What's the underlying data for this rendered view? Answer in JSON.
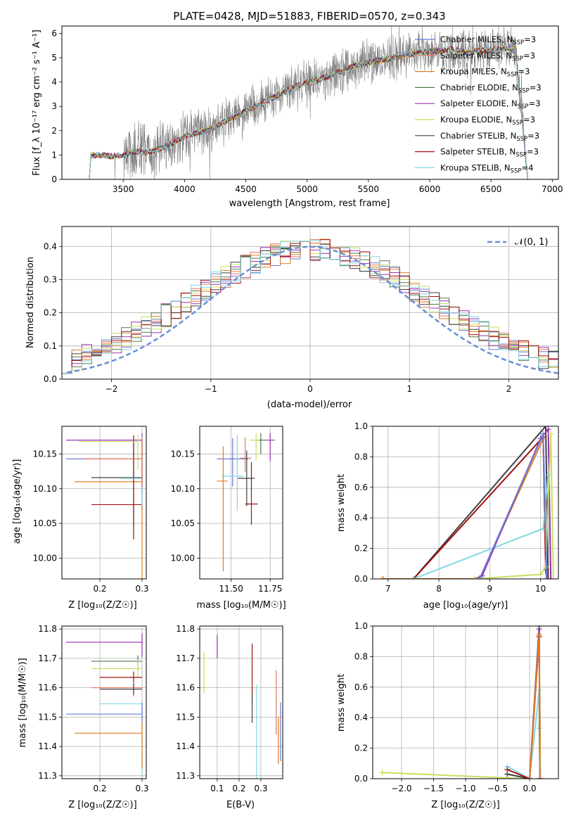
{
  "colors": {
    "data_spectrum": "#808080",
    "gaussian": "#6a8fd8",
    "models": [
      "#6a7ad8",
      "#e07a5f",
      "#e07b20",
      "#4d7a4d",
      "#9b30b0",
      "#c8e060",
      "#404040",
      "#a01010",
      "#80d8e0"
    ]
  },
  "chart_data": [
    {
      "id": "spectrum",
      "type": "line",
      "title": "PLATE=0428, MJD=51883, FIBERID=0570, z=0.343",
      "xlabel": "wavelength [Angstrom, rest frame]",
      "ylabel": "Flux [f_λ 10⁻¹⁷ erg cm⁻² s⁻¹ A⁻¹]",
      "xlim": [
        3000,
        7050
      ],
      "ylim": [
        0,
        6.3
      ],
      "xticks": [
        "3500",
        "4000",
        "4500",
        "5000",
        "5500",
        "6000",
        "6500",
        "7000"
      ],
      "yticks": [
        "0",
        "1",
        "2",
        "3",
        "4",
        "5",
        "6"
      ],
      "grid": false,
      "legend_location": "upper right",
      "legend": [
        {
          "label": "Chabrier MILES, N",
          "sub": "SSP",
          "suffix": "=3"
        },
        {
          "label": "Salpeter MILES, N",
          "sub": "SSP",
          "suffix": "=3"
        },
        {
          "label": "Kroupa MILES, N",
          "sub": "SSP",
          "suffix": "=3"
        },
        {
          "label": "Chabrier ELODIE, N",
          "sub": "SSP",
          "suffix": "=3"
        },
        {
          "label": "Salpeter ELODIE, N",
          "sub": "SSP",
          "suffix": "=3"
        },
        {
          "label": "Kroupa ELODIE, N",
          "sub": "SSP",
          "suffix": "=3"
        },
        {
          "label": "Chabrier STELIB, N",
          "sub": "SSP",
          "suffix": "=3"
        },
        {
          "label": "Salpeter STELIB, N",
          "sub": "SSP",
          "suffix": "=3"
        },
        {
          "label": "Kroupa STELIB, N",
          "sub": "SSP",
          "suffix": "=4"
        }
      ],
      "data_x_range": [
        3240,
        6780
      ],
      "model_continuum": {
        "x": [
          3200,
          3230,
          3300,
          3400,
          3500,
          3600,
          3700,
          3800,
          3900,
          4000,
          4100,
          4200,
          4300,
          4400,
          4500,
          4600,
          4700,
          4800,
          4900,
          5000,
          5100,
          5200,
          5300,
          5400,
          5500,
          5600,
          5700,
          5800,
          5900,
          6000,
          6100,
          6200,
          6300,
          6400,
          6500,
          6600,
          6700,
          6800
        ],
        "y": [
          0,
          1.0,
          1.0,
          0.95,
          1.0,
          1.15,
          1.1,
          1.25,
          1.5,
          1.75,
          1.9,
          2.05,
          2.3,
          2.55,
          2.8,
          3.05,
          3.3,
          3.55,
          3.8,
          4.0,
          4.1,
          4.3,
          4.5,
          4.7,
          4.8,
          4.9,
          5.0,
          5.1,
          5.2,
          5.25,
          5.3,
          5.35,
          5.2,
          5.3,
          5.3,
          5.4,
          5.3,
          0
        ]
      }
    },
    {
      "id": "residuals",
      "type": "step",
      "xlabel": "(data-model)/error",
      "ylabel": "Normed distribution",
      "xlim": [
        -2.5,
        2.5
      ],
      "ylim": [
        0,
        0.46
      ],
      "xticks": [
        "−2",
        "−1",
        "0",
        "1",
        "2"
      ],
      "yticks": [
        "0.0",
        "0.1",
        "0.2",
        "0.3",
        "0.4"
      ],
      "grid": true,
      "legend": "𝒩(0, 1)",
      "legend_location": "upper right",
      "bin_edges_start": -2.5,
      "bin_width": 0.1,
      "bins": 50
    },
    {
      "id": "age-vs-Z",
      "type": "errorbar",
      "xlabel": "Z [log₁₀(Z/Z☉)]",
      "ylabel": "age  [log₁₀(age/yr)]",
      "xlim": [
        0.11,
        0.31
      ],
      "ylim": [
        9.97,
        10.19
      ],
      "xticks": [
        "0.2",
        "0.3"
      ],
      "yticks": [
        "10.00",
        "10.05",
        "10.10",
        "10.15"
      ],
      "grid": true,
      "points": [
        {
          "x": 0.3,
          "y": 10.143,
          "xerr": [
            0.18,
            0.0
          ],
          "yerr": [
            0.05,
            0.03
          ],
          "series": 0
        },
        {
          "x": 0.3,
          "y": 10.17,
          "xerr": [
            0.18,
            0.0
          ],
          "yerr": [
            0.1,
            0.01
          ],
          "series": 4
        },
        {
          "x": 0.3,
          "y": 10.11,
          "xerr": [
            0.16,
            0.0
          ],
          "yerr": [
            0.14,
            0.06
          ],
          "series": 2
        },
        {
          "x": 0.28,
          "y": 10.116,
          "xerr": [
            0.1,
            0.02
          ],
          "yerr": [
            0.07,
            0.05
          ],
          "series": 6
        },
        {
          "x": 0.28,
          "y": 10.077,
          "xerr": [
            0.1,
            0.02
          ],
          "yerr": [
            0.05,
            0.1
          ],
          "series": 7
        },
        {
          "x": 0.29,
          "y": 10.168,
          "xerr": [
            0.14,
            0.0
          ],
          "yerr": [
            0.04,
            0.01
          ],
          "series": 5
        },
        {
          "x": 0.3,
          "y": 10.115,
          "xerr": [
            0.05,
            0.0
          ],
          "yerr": [
            0.04,
            0.06
          ],
          "series": 8
        },
        {
          "x": 0.3,
          "y": 10.143,
          "xerr": [
            0.14,
            0.0
          ],
          "yerr": [
            0.04,
            0.03
          ],
          "series": 1
        }
      ]
    },
    {
      "id": "age-vs-mass",
      "type": "errorbar",
      "xlabel": "mass [log₁₀(M/M☉)]",
      "ylabel": "",
      "xlim": [
        11.3,
        11.83
      ],
      "ylim": [
        9.97,
        10.19
      ],
      "xticks": [
        "11.50",
        "11.75"
      ],
      "yticks": [
        "10.00",
        "10.05",
        "10.10",
        "10.15"
      ],
      "grid": true,
      "points": [
        {
          "x": 11.51,
          "y": 10.143,
          "xerr": [
            0.1,
            0.1
          ],
          "yerr": [
            0.04,
            0.03
          ],
          "series": 0
        },
        {
          "x": 11.59,
          "y": 10.144,
          "xerr": [
            0.03,
            0.04
          ],
          "yerr": [
            0.02,
            0.03
          ],
          "series": 1
        },
        {
          "x": 11.45,
          "y": 10.111,
          "xerr": [
            0.04,
            0.03
          ],
          "yerr": [
            0.13,
            0.05
          ],
          "series": 2
        },
        {
          "x": 11.69,
          "y": 10.17,
          "xerr": [
            0.03,
            0.04
          ],
          "yerr": [
            0.02,
            0.01
          ],
          "series": 3
        },
        {
          "x": 11.75,
          "y": 10.17,
          "xerr": [
            0.02,
            0.03
          ],
          "yerr": [
            0.03,
            0.01
          ],
          "series": 4
        },
        {
          "x": 11.66,
          "y": 10.17,
          "xerr": [
            0.04,
            0.02
          ],
          "yerr": [
            0.03,
            0.01
          ],
          "series": 5
        },
        {
          "x": 11.6,
          "y": 10.115,
          "xerr": [
            0.06,
            0.05
          ],
          "yerr": [
            0.04,
            0.04
          ],
          "series": 6
        },
        {
          "x": 11.63,
          "y": 10.078,
          "xerr": [
            0.04,
            0.04
          ],
          "yerr": [
            0.03,
            0.06
          ],
          "series": 7
        },
        {
          "x": 11.54,
          "y": 10.118,
          "xerr": [
            0.1,
            0.04
          ],
          "yerr": [
            0.05,
            0.06
          ],
          "series": 8
        }
      ]
    },
    {
      "id": "massweight-vs-age",
      "type": "line",
      "xlabel": "age  [log₁₀(age/yr)]",
      "ylabel": "mass weight",
      "xlim": [
        6.7,
        10.35
      ],
      "ylim": [
        0,
        1
      ],
      "xticks": [
        "7",
        "8",
        "9",
        "10"
      ],
      "yticks": [
        "0.0",
        "0.2",
        "0.4",
        "0.6",
        "0.8",
        "1.0"
      ],
      "grid": true,
      "series": [
        {
          "color_index": 6,
          "points": [
            [
              6.9,
              0
            ],
            [
              7.5,
              0
            ],
            [
              10.1,
              1.0
            ],
            [
              10.15,
              0
            ]
          ]
        },
        {
          "color_index": 7,
          "points": [
            [
              6.9,
              0
            ],
            [
              7.5,
              0
            ],
            [
              10.05,
              0.93
            ],
            [
              10.1,
              0.06
            ],
            [
              10.12,
              0.0
            ]
          ]
        },
        {
          "color_index": 8,
          "points": [
            [
              6.9,
              0
            ],
            [
              7.5,
              0
            ],
            [
              10.05,
              0.33
            ],
            [
              10.15,
              0.68
            ],
            [
              10.2,
              0
            ]
          ]
        },
        {
          "color_index": 2,
          "points": [
            [
              6.9,
              0
            ],
            [
              8.8,
              0.0
            ],
            [
              10.05,
              0.92
            ],
            [
              10.12,
              0.0
            ]
          ]
        },
        {
          "color_index": 4,
          "points": [
            [
              8.7,
              0
            ],
            [
              8.85,
              0.02
            ],
            [
              10.0,
              0.92
            ],
            [
              10.15,
              0.98
            ],
            [
              10.2,
              0.0
            ]
          ]
        },
        {
          "color_index": 5,
          "points": [
            [
              8.7,
              0
            ],
            [
              10.0,
              0.03
            ],
            [
              10.1,
              0.08
            ],
            [
              10.2,
              0.95
            ],
            [
              10.25,
              0.0
            ]
          ]
        },
        {
          "color_index": 0,
          "points": [
            [
              8.8,
              0
            ],
            [
              10.05,
              0.95
            ],
            [
              10.12,
              0.0
            ]
          ]
        }
      ]
    },
    {
      "id": "mass-vs-Z",
      "type": "errorbar",
      "xlabel": "Z [log₁₀(Z/Z☉)]",
      "ylabel": "mass [log₁₀(M/M☉)]",
      "xlim": [
        0.11,
        0.31
      ],
      "ylim": [
        11.29,
        11.81
      ],
      "xticks": [
        "0.2",
        "0.3"
      ],
      "yticks": [
        "11.3",
        "11.4",
        "11.5",
        "11.6",
        "11.7",
        "11.8"
      ],
      "grid": true,
      "points": [
        {
          "x": 0.3,
          "y": 11.755,
          "xerr": [
            0.18,
            0.0
          ],
          "yerr": [
            0.05,
            0.03
          ],
          "series": 4
        },
        {
          "x": 0.29,
          "y": 11.69,
          "xerr": [
            0.11,
            0.01
          ],
          "yerr": [
            0.03,
            0.02
          ],
          "series": 3
        },
        {
          "x": 0.29,
          "y": 11.665,
          "xerr": [
            0.11,
            0.01
          ],
          "yerr": [
            0.03,
            0.03
          ],
          "series": 5
        },
        {
          "x": 0.28,
          "y": 11.635,
          "xerr": [
            0.08,
            0.02
          ],
          "yerr": [
            0.03,
            0.02
          ],
          "series": 7
        },
        {
          "x": 0.28,
          "y": 11.6,
          "xerr": [
            0.1,
            0.02
          ],
          "yerr": [
            0.03,
            0.02
          ],
          "series": 1
        },
        {
          "x": 0.28,
          "y": 11.595,
          "xerr": [
            0.08,
            0.02
          ],
          "yerr": [
            0.02,
            0.02
          ],
          "series": 6
        },
        {
          "x": 0.3,
          "y": 11.545,
          "xerr": [
            0.1,
            0.0
          ],
          "yerr": [
            0.24,
            0.0
          ],
          "series": 8
        },
        {
          "x": 0.3,
          "y": 11.51,
          "xerr": [
            0.18,
            0.0
          ],
          "yerr": [
            0.03,
            0.04
          ],
          "series": 0
        },
        {
          "x": 0.3,
          "y": 11.445,
          "xerr": [
            0.16,
            0.0
          ],
          "yerr": [
            0.12,
            0.04
          ],
          "series": 2
        }
      ]
    },
    {
      "id": "mass-vs-EBV",
      "type": "errorbar",
      "xlabel": "E(B-V)",
      "ylabel": "",
      "xlim": [
        0.02,
        0.4
      ],
      "ylim": [
        11.29,
        11.81
      ],
      "xticks": [
        "0.1",
        "0.2",
        "0.3"
      ],
      "yticks": [
        "11.3",
        "11.4",
        "11.5",
        "11.6",
        "11.7",
        "11.8"
      ],
      "grid": true,
      "points": [
        {
          "x": 0.04,
          "y": 11.65,
          "xerr": [
            0,
            0
          ],
          "yerr": [
            0.07,
            0.07
          ],
          "series": 5
        },
        {
          "x": 0.1,
          "y": 11.74,
          "xerr": [
            0,
            0
          ],
          "yerr": [
            0.04,
            0.04
          ],
          "series": 4
        },
        {
          "x": 0.26,
          "y": 11.65,
          "xerr": [
            0,
            0
          ],
          "yerr": [
            0.1,
            0.1
          ],
          "series": 7
        },
        {
          "x": 0.26,
          "y": 11.53,
          "xerr": [
            0,
            0
          ],
          "yerr": [
            0.05,
            0.05
          ],
          "series": 6
        },
        {
          "x": 0.28,
          "y": 11.45,
          "xerr": [
            0,
            0
          ],
          "yerr": [
            0.16,
            0.16
          ],
          "series": 8
        },
        {
          "x": 0.37,
          "y": 11.55,
          "xerr": [
            0,
            0
          ],
          "yerr": [
            0.11,
            0.11
          ],
          "series": 1
        },
        {
          "x": 0.38,
          "y": 11.42,
          "xerr": [
            0,
            0
          ],
          "yerr": [
            0.08,
            0.08
          ],
          "series": 2
        },
        {
          "x": 0.39,
          "y": 11.45,
          "xerr": [
            0,
            0
          ],
          "yerr": [
            0.1,
            0.1
          ],
          "series": 0
        }
      ]
    },
    {
      "id": "massweight-vs-Z",
      "type": "line",
      "xlabel": "Z [log₁₀(Z/Z☉)]",
      "ylabel": "mass weight",
      "xlim": [
        -2.45,
        0.45
      ],
      "ylim": [
        0,
        1
      ],
      "xticks": [
        "−2.0",
        "−1.5",
        "−1.0",
        "−0.5",
        "0.0"
      ],
      "yticks": [
        "0.0",
        "0.2",
        "0.4",
        "0.6",
        "0.8",
        "1.0"
      ],
      "grid": true,
      "series": [
        {
          "color_index": 5,
          "points": [
            [
              -2.3,
              0.04
            ],
            [
              -0.35,
              0.005
            ],
            [
              0.0,
              0.0
            ],
            [
              0.15,
              0.95
            ],
            [
              0.17,
              0.0
            ]
          ]
        },
        {
          "color_index": 8,
          "points": [
            [
              -0.35,
              0.08
            ],
            [
              0.0,
              0.0
            ],
            [
              0.15,
              0.58
            ],
            [
              0.15,
              0.33
            ],
            [
              0.17,
              0.0
            ]
          ]
        },
        {
          "color_index": 6,
          "points": [
            [
              -0.35,
              0.03
            ],
            [
              0.0,
              0.0
            ],
            [
              0.15,
              1.0
            ],
            [
              0.16,
              0.0
            ]
          ]
        },
        {
          "color_index": 7,
          "points": [
            [
              -0.35,
              0.06
            ],
            [
              0.0,
              0.0
            ],
            [
              0.15,
              0.93
            ],
            [
              0.16,
              0.0
            ]
          ]
        },
        {
          "color_index": 4,
          "points": [
            [
              0.0,
              0.0
            ],
            [
              0.15,
              0.98
            ],
            [
              0.16,
              0.0
            ]
          ]
        },
        {
          "color_index": 2,
          "points": [
            [
              0.0,
              0.0
            ],
            [
              0.15,
              0.94
            ],
            [
              0.16,
              0.0
            ]
          ]
        }
      ]
    }
  ]
}
